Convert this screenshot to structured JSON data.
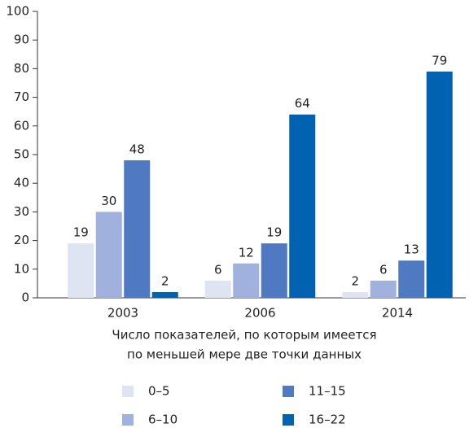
{
  "chart_data": {
    "type": "bar",
    "categories": [
      "2003",
      "2006",
      "2014"
    ],
    "series": [
      {
        "name": "0–5",
        "color": "#dfe4f3",
        "values": [
          19,
          6,
          2
        ]
      },
      {
        "name": "6–10",
        "color": "#9fb1dc",
        "values": [
          30,
          12,
          6
        ]
      },
      {
        "name": "11–15",
        "color": "#4f7ac2",
        "values": [
          48,
          19,
          13
        ]
      },
      {
        "name": "16–22",
        "color": "#0062b1",
        "values": [
          2,
          64,
          79
        ]
      }
    ],
    "xlabel": [
      "Число показателей, по которым имеется",
      "по меньшей мере две точки данных"
    ],
    "ylim": [
      0,
      100
    ],
    "yticks": [
      0,
      10,
      20,
      30,
      40,
      50,
      60,
      70,
      80,
      90,
      100
    ],
    "grid": false,
    "legend": "bottom"
  }
}
